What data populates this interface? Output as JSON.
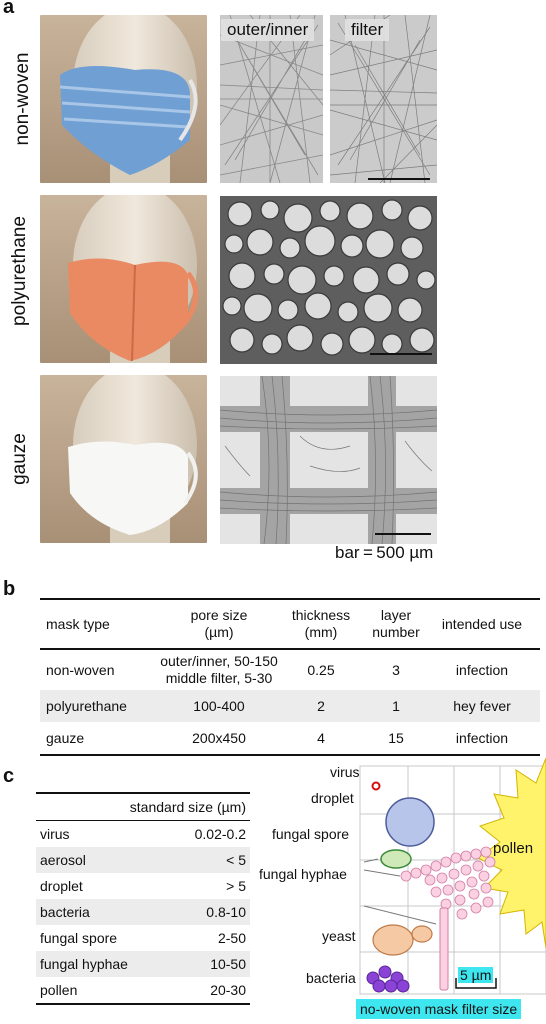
{
  "panel_a": {
    "letter": "a",
    "rows": [
      {
        "label": "non-woven"
      },
      {
        "label": "polyurethane"
      },
      {
        "label": "gauze"
      }
    ],
    "micro_labels": {
      "left": "outer/inner",
      "right": "filter"
    },
    "scale_bar_label": "bar = 500 µm"
  },
  "panel_b": {
    "letter": "b",
    "headers": {
      "mask_type": "mask type",
      "pore_size_line1": "pore size",
      "pore_size_line2": "(µm)",
      "thickness_line1": "thickness",
      "thickness_line2": "(mm)",
      "layer_line1": "layer",
      "layer_line2": "number",
      "intended_use": "intended use"
    },
    "rows": [
      {
        "mask_type": "non-woven",
        "pore_line1": "outer/inner, 50-150",
        "pore_line2": "middle filter, 5-30",
        "thickness": "0.25",
        "layer": "3",
        "use": "infection"
      },
      {
        "mask_type": "polyurethane",
        "pore_line1": "100-400",
        "pore_line2": "",
        "thickness": "2",
        "layer": "1",
        "use": "hey fever"
      },
      {
        "mask_type": "gauze",
        "pore_line1": "200x450",
        "pore_line2": "",
        "thickness": "4",
        "layer": "15",
        "use": "infection"
      }
    ]
  },
  "panel_c": {
    "letter": "c",
    "table_header": "standard size (µm)",
    "rows": [
      {
        "name": "virus",
        "size": "0.02-0.2"
      },
      {
        "name": "aerosol",
        "size": "< 5"
      },
      {
        "name": "droplet",
        "size": "> 5"
      },
      {
        "name": "bacteria",
        "size": "0.8-10"
      },
      {
        "name": "fungal spore",
        "size": "2-50"
      },
      {
        "name": "fungal hyphae",
        "size": "10-50"
      },
      {
        "name": "pollen",
        "size": "20-30"
      }
    ],
    "diagram": {
      "virus": "virus",
      "droplet": "droplet",
      "fungal_spore": "fungal spore",
      "fungal_hyphae": "fungal hyphae",
      "yeast": "yeast",
      "bacteria": "bacteria",
      "pollen": "pollen",
      "scale": "5 µm",
      "footer": "no-woven mask filter size",
      "footer_color": "#3ee7f0"
    }
  }
}
